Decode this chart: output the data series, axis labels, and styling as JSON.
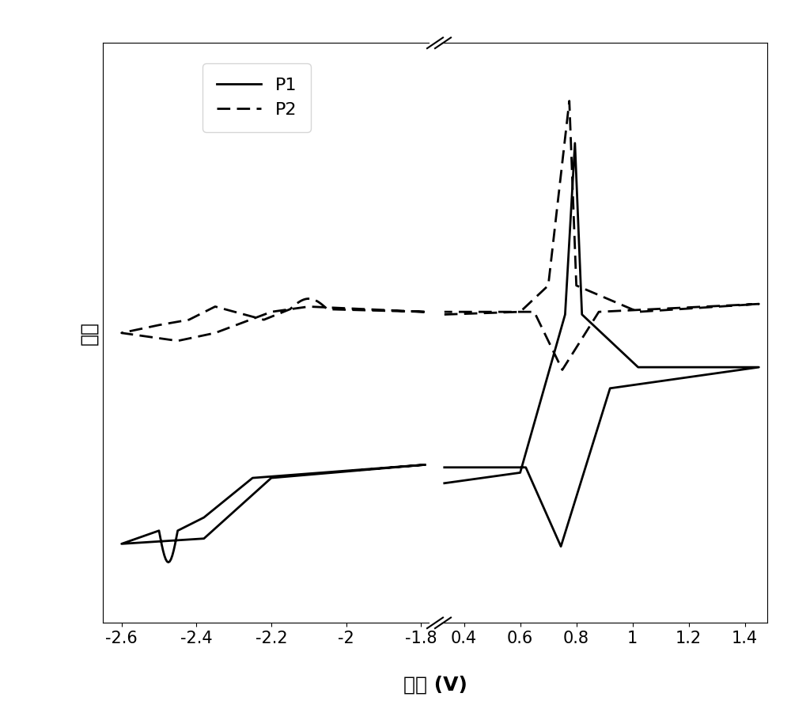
{
  "title": "",
  "xlabel": "电势 (V)",
  "ylabel": "电流",
  "xlim_left": [
    -2.65,
    -1.78
  ],
  "xlim_right": [
    0.32,
    1.48
  ],
  "background_color": "#ffffff",
  "linewidth": 2.0,
  "legend_labels": [
    "P1",
    "P2"
  ],
  "x_ticks_left": [
    -2.6,
    -2.4,
    -2.2,
    -2.0,
    -1.8
  ],
  "x_ticks_right": [
    0.4,
    0.6,
    0.8,
    1.0,
    1.2,
    1.4
  ],
  "x_tick_labels_left": [
    "-2.6",
    "-2.4",
    "-2.2",
    "-2",
    "-1.8"
  ],
  "x_tick_labels_right": [
    "0.4",
    "0.6",
    "0.8",
    "1",
    "1.2",
    "1.4"
  ]
}
